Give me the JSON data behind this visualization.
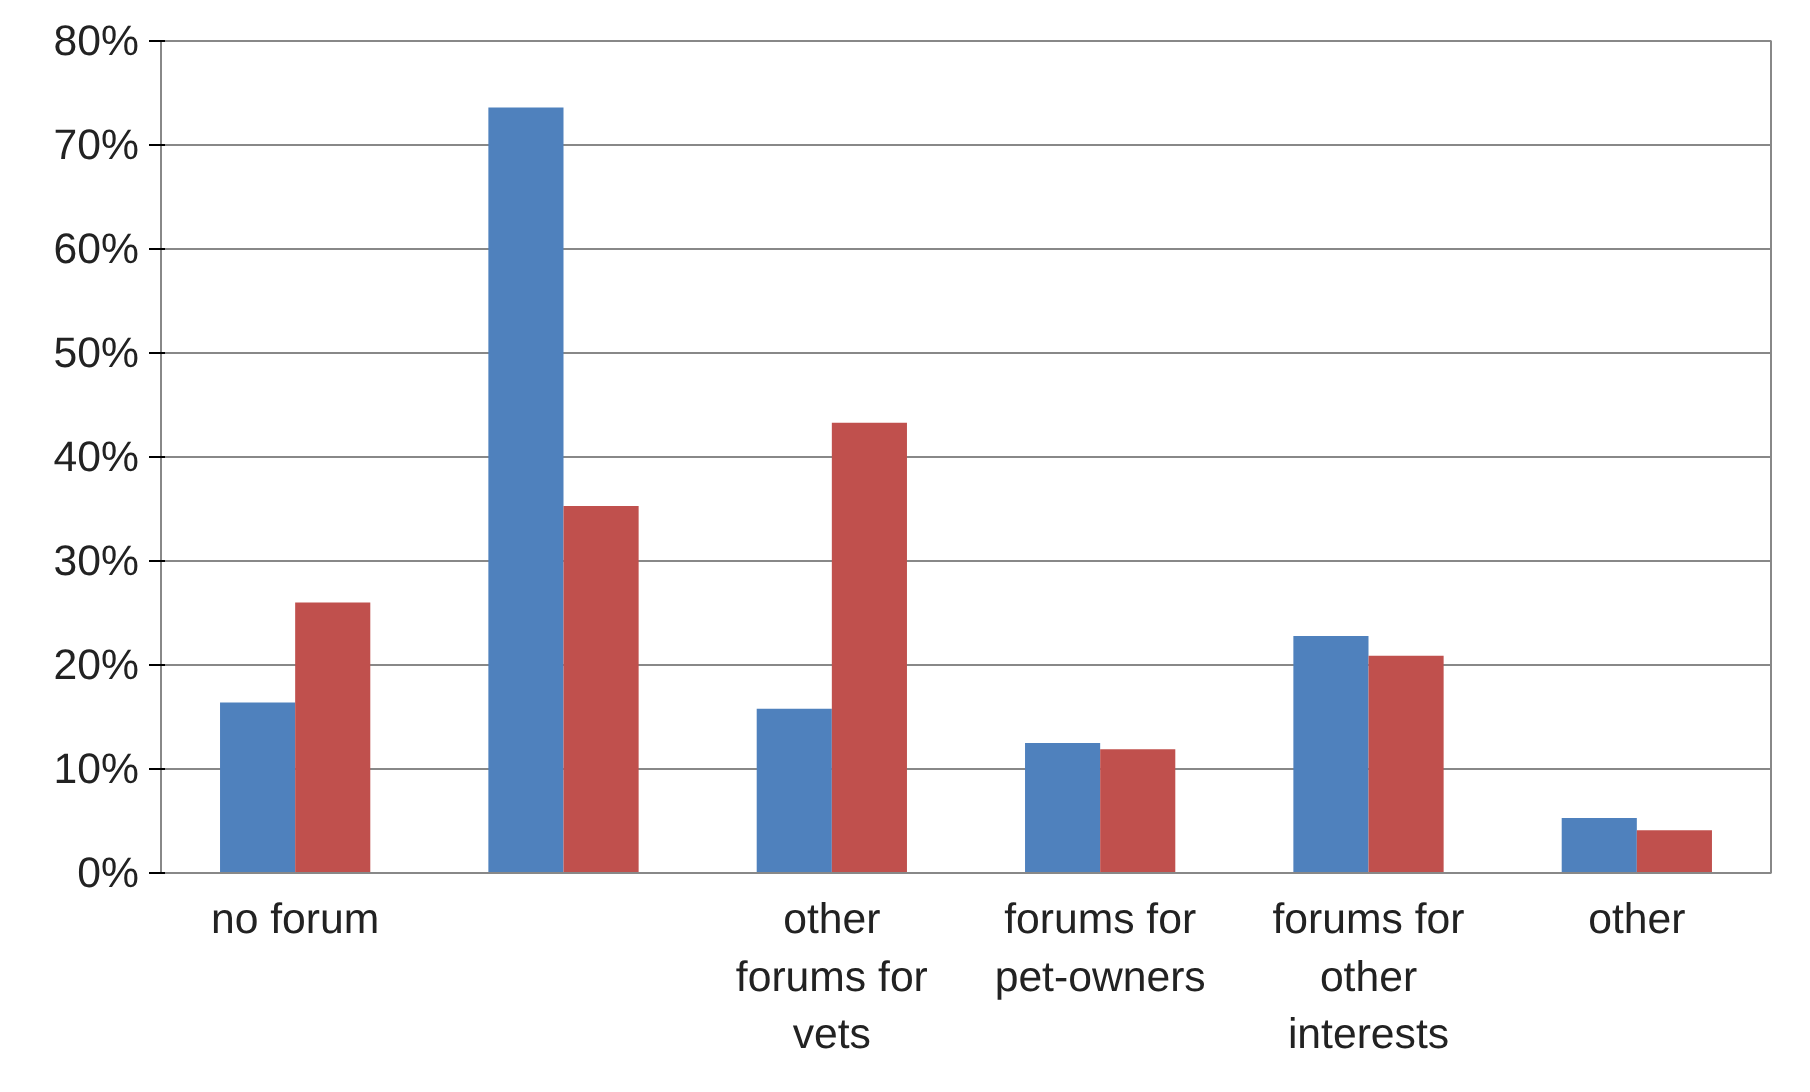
{
  "chart_data": {
    "type": "bar",
    "categories": [
      "no forum",
      null,
      "other\nforums for\nvets",
      "forums for\npet-owners",
      "forums for\nother\ninterests",
      "other"
    ],
    "series": [
      {
        "color": "#4f81bd",
        "values": [
          16.4,
          73.6,
          15.8,
          12.5,
          22.8,
          5.3
        ]
      },
      {
        "color": "#c0504d",
        "values": [
          26,
          35.3,
          43.3,
          11.9,
          20.9,
          4.1
        ]
      }
    ],
    "ylim": [
      0,
      80
    ],
    "yticks": [
      {
        "value": 0,
        "label": "0%"
      },
      {
        "value": 10,
        "label": "10%"
      },
      {
        "value": 20,
        "label": "20%"
      },
      {
        "value": 30,
        "label": "30%"
      },
      {
        "value": 40,
        "label": "40%"
      },
      {
        "value": 50,
        "label": "50%"
      },
      {
        "value": 60,
        "label": "60%"
      },
      {
        "value": 70,
        "label": "70%"
      },
      {
        "value": 80,
        "label": "80%"
      }
    ],
    "grid": "y"
  }
}
